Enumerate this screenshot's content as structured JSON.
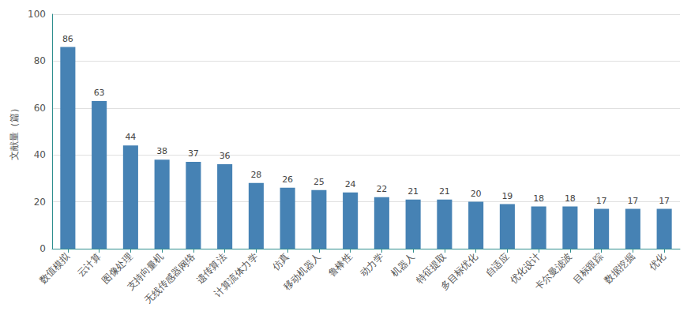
{
  "chart_data": {
    "type": "bar",
    "y_label": "文献量（篇）",
    "categories": [
      "数值模拟",
      "云计算",
      "图像处理",
      "支持向量机",
      "无线传感器网络",
      "遗传算法",
      "计算流体力学",
      "仿真",
      "移动机器人",
      "鲁棒性",
      "动力学",
      "机器人",
      "特征提取",
      "多目标优化",
      "自适应",
      "优化设计",
      "卡尔曼滤波",
      "目标跟踪",
      "数据挖掘",
      "优化"
    ],
    "values": [
      86,
      63,
      44,
      38,
      37,
      36,
      28,
      26,
      25,
      24,
      22,
      21,
      21,
      20,
      19,
      18,
      18,
      17,
      17,
      17
    ],
    "color": "#4682b4",
    "ylim": [
      0,
      100
    ],
    "yticks": [
      0,
      20,
      40,
      60,
      80,
      100
    ],
    "grid": true,
    "data_labels": true
  }
}
